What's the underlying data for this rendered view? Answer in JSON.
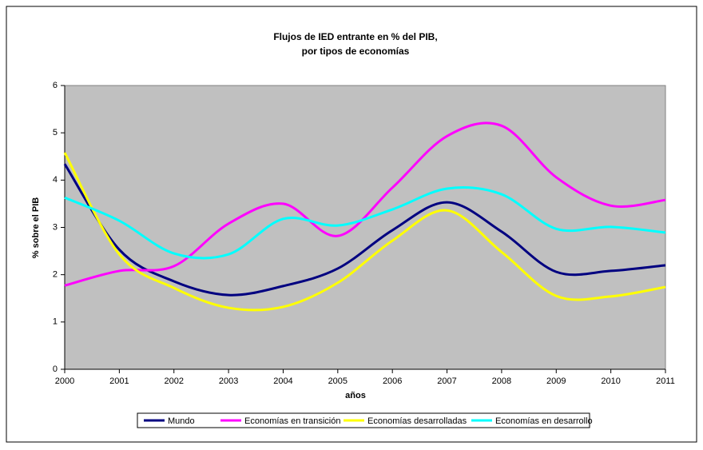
{
  "chart_data": {
    "type": "line",
    "title": [
      "Flujos de IED entrante en % del PIB,",
      "por tipos de economías"
    ],
    "x_label": "años",
    "y_label": "% sobre el PIB",
    "categories": [
      "2000",
      "2001",
      "2002",
      "2003",
      "2004",
      "2005",
      "2006",
      "2007",
      "2008",
      "2009",
      "2010",
      "2011"
    ],
    "series": [
      {
        "name": "Mundo",
        "color": "#000080",
        "values": [
          4.34,
          2.53,
          1.86,
          1.57,
          1.76,
          2.13,
          2.94,
          3.53,
          2.91,
          2.06,
          2.08,
          2.2
        ]
      },
      {
        "name": "Economías en transición",
        "color": "#ff00ff",
        "values": [
          1.77,
          2.08,
          2.18,
          3.08,
          3.5,
          2.82,
          3.84,
          4.93,
          5.15,
          4.06,
          3.46,
          3.58
        ]
      },
      {
        "name": "Economías desarrolladas",
        "color": "#ffff00",
        "values": [
          4.58,
          2.43,
          1.72,
          1.3,
          1.32,
          1.83,
          2.72,
          3.36,
          2.48,
          1.55,
          1.54,
          1.74
        ]
      },
      {
        "name": "Economías en desarrollo",
        "color": "#00ffff",
        "values": [
          3.63,
          3.14,
          2.45,
          2.43,
          3.18,
          3.04,
          3.38,
          3.82,
          3.7,
          2.97,
          3.01,
          2.89
        ]
      }
    ],
    "ylim": [
      0,
      6
    ],
    "yticks": [
      0,
      1,
      2,
      3,
      4,
      5,
      6
    ],
    "plot_background": "#c0c0c0",
    "legend": "bottom"
  }
}
